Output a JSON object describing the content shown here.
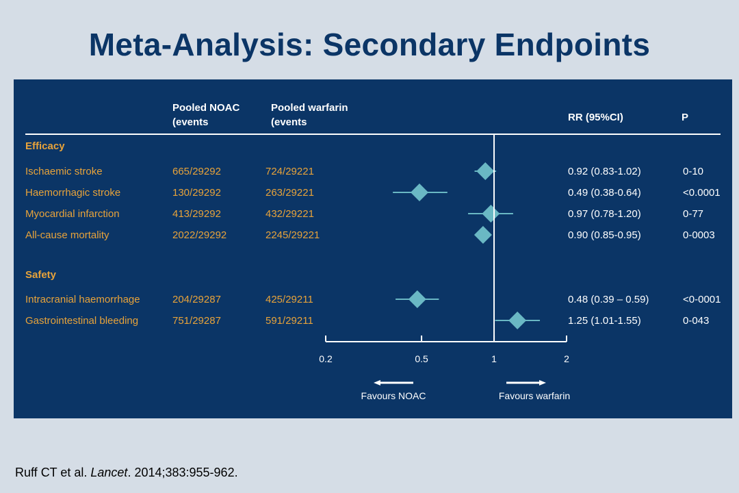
{
  "title": "Meta-Analysis:  Secondary Endpoints",
  "headers": {
    "noac": [
      "Pooled NOAC",
      "(events"
    ],
    "warfarin": [
      "Pooled warfarin",
      "(events"
    ],
    "rr": "RR (95%CI)",
    "p": "P"
  },
  "citation": {
    "authors": "Ruff CT et al. ",
    "journal": "Lancet",
    "details": ". 2014;383:955-962."
  },
  "colors": {
    "panel": "#0b3566",
    "accent": "#e8a33a",
    "marker": "#6ab8c4",
    "title": "#0b3566"
  },
  "chart_data": {
    "type": "forest",
    "x_scale": "log",
    "xlim": [
      0.2,
      2
    ],
    "x_ticks": [
      {
        "value": 0.2,
        "label": "0.2"
      },
      {
        "value": 0.5,
        "label": "0.5"
      },
      {
        "value": 1,
        "label": "1"
      },
      {
        "value": 2,
        "label": "2"
      }
    ],
    "reference_line": 1,
    "favours_left": "Favours NOAC",
    "favours_right": "Favours warfarin",
    "sections": [
      {
        "name": "Efficacy",
        "rows": [
          {
            "label": "Ischaemic stroke",
            "noac": "665/29292",
            "warfarin": "724/29221",
            "rr_text": "0.92 (0.83-1.02)",
            "p": "0-10",
            "rr": 0.92,
            "lo": 0.83,
            "hi": 1.02
          },
          {
            "label": "Haemorrhagic stroke",
            "noac": "130/29292",
            "warfarin": "263/29221",
            "rr_text": "0.49 (0.38-0.64)",
            "p": "<0.0001",
            "rr": 0.49,
            "lo": 0.38,
            "hi": 0.64
          },
          {
            "label": "Myocardial infarction",
            "noac": "413/29292",
            "warfarin": "432/29221",
            "rr_text": "0.97 (0.78-1.20)",
            "p": "0-77",
            "rr": 0.97,
            "lo": 0.78,
            "hi": 1.2
          },
          {
            "label": "All-cause mortality",
            "noac": "2022/29292",
            "warfarin": "2245/29221",
            "rr_text": "0.90 (0.85-0.95)",
            "p": "0-0003",
            "rr": 0.9,
            "lo": 0.85,
            "hi": 0.95
          }
        ]
      },
      {
        "name": "Safety",
        "rows": [
          {
            "label": "Intracranial haemorrhage",
            "noac": "204/29287",
            "warfarin": "425/29211",
            "rr_text": "0.48 (0.39 – 0.59)",
            "p": "<0-0001",
            "rr": 0.48,
            "lo": 0.39,
            "hi": 0.59
          },
          {
            "label": "Gastrointestinal bleeding",
            "noac": "751/29287",
            "warfarin": "591/29211",
            "rr_text": "1.25 (1.01-1.55)",
            "p": "0-043",
            "rr": 1.25,
            "lo": 1.01,
            "hi": 1.55
          }
        ]
      }
    ]
  }
}
